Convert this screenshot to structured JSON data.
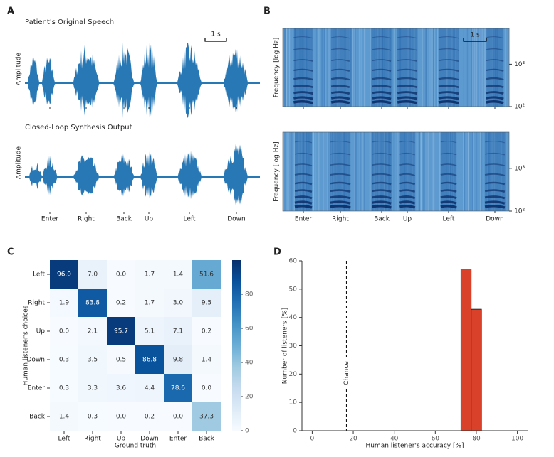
{
  "chart_data": [
    {
      "type": "waveform",
      "panel": "A",
      "subplots": [
        {
          "title": "Patient's Original Speech",
          "ylabel": "Amplitude",
          "scale_bar": "1 s"
        },
        {
          "title": "Closed-Loop Synthesis Output",
          "ylabel": "Amplitude"
        }
      ],
      "categories": [
        "Enter",
        "Right",
        "Back",
        "Up",
        "Left",
        "Down"
      ],
      "color": "#2878b5"
    },
    {
      "type": "spectrogram",
      "panel": "B",
      "ylabel": "Frequency [log Hz]",
      "log_scale": true,
      "ylim": [
        100,
        7000
      ],
      "yticks": [
        {
          "value": 100,
          "label": "10²"
        },
        {
          "value": 1000,
          "label": "10³"
        }
      ],
      "scale_bar": "1 s",
      "categories": [
        "Enter",
        "Right",
        "Back",
        "Up",
        "Left",
        "Down"
      ]
    },
    {
      "type": "heatmap",
      "panel": "C",
      "xlabel": "Ground truth",
      "ylabel": "Human listener's choices",
      "x_categories": [
        "Left",
        "Right",
        "Up",
        "Down",
        "Enter",
        "Back"
      ],
      "y_categories": [
        "Left",
        "Right",
        "Up",
        "Down",
        "Enter",
        "Back"
      ],
      "values": [
        [
          96.0,
          7.0,
          0.0,
          1.7,
          1.4,
          51.6
        ],
        [
          1.9,
          83.8,
          0.2,
          1.7,
          3.0,
          9.5
        ],
        [
          0.0,
          2.1,
          95.7,
          5.1,
          7.1,
          0.2
        ],
        [
          0.3,
          3.5,
          0.5,
          86.8,
          9.8,
          1.4
        ],
        [
          0.3,
          3.3,
          3.6,
          4.4,
          78.6,
          0.0
        ],
        [
          1.4,
          0.3,
          0.0,
          0.2,
          0.0,
          37.3
        ]
      ],
      "value_labels": [
        [
          "96.0",
          "7.0",
          "0.0",
          "1.7",
          "1.4",
          "51.6"
        ],
        [
          "1.9",
          "83.8",
          "0.2",
          "1.7",
          "3.0",
          "9.5"
        ],
        [
          "0.0",
          "2.1",
          "95.7",
          "5.1",
          "7.1",
          "0.2"
        ],
        [
          "0.3",
          "3.5",
          "0.5",
          "86.8",
          "9.8",
          "1.4"
        ],
        [
          "0.3",
          "3.3",
          "3.6",
          "4.4",
          "78.6",
          "0.0"
        ],
        [
          "1.4",
          "0.3",
          "0.0",
          "0.2",
          "0.0",
          "37.3"
        ]
      ],
      "clim": [
        0,
        100
      ],
      "colorbar_ticks": [
        0,
        20,
        40,
        60,
        80
      ]
    },
    {
      "type": "histogram",
      "panel": "D",
      "xlabel": "Human listener's accuracy [%]",
      "ylabel": "Number of listeners [%]",
      "bins": [
        72.5,
        77.5,
        82.5
      ],
      "values": [
        57.1,
        42.9
      ],
      "color": "#d9412b",
      "xlim": [
        -5,
        105
      ],
      "ylim": [
        0,
        60
      ],
      "xticks": [
        0,
        20,
        40,
        60,
        80,
        100
      ],
      "yticks": [
        0,
        10,
        20,
        30,
        40,
        50,
        60
      ],
      "chance": {
        "value": 16.7,
        "label": "Chance"
      }
    }
  ]
}
